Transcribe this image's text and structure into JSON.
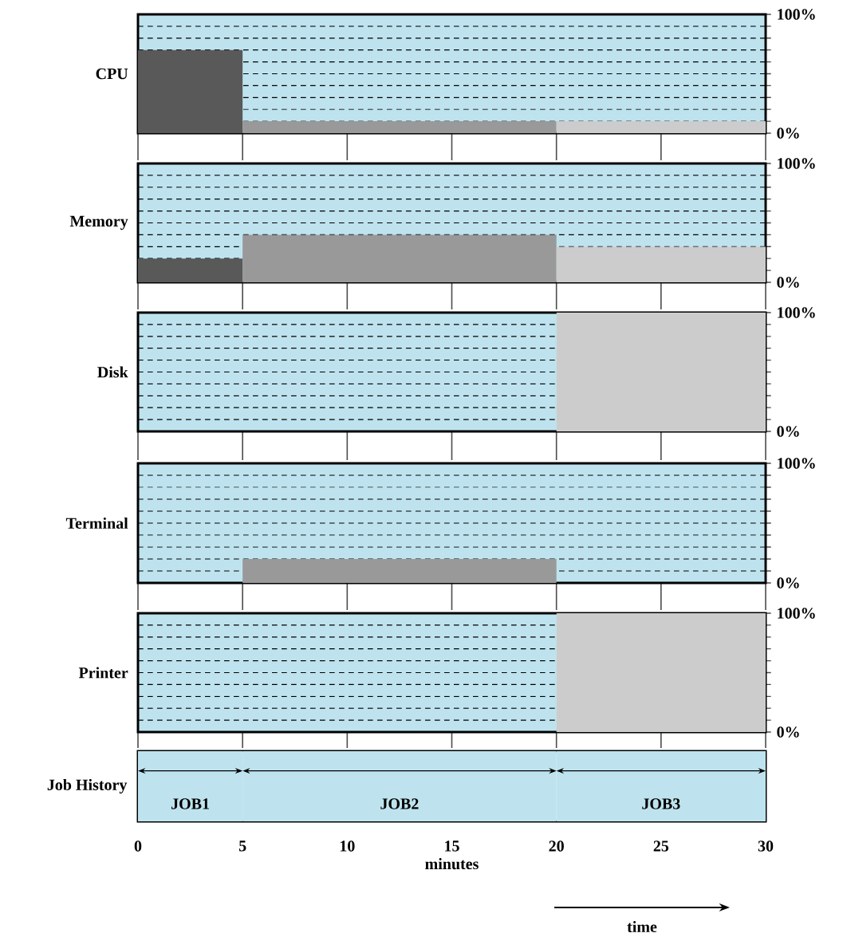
{
  "chart_data": [
    {
      "type": "histogram",
      "ylabel": "CPU",
      "bins": [
        0,
        5,
        20,
        30
      ],
      "values": [
        70,
        10,
        10
      ],
      "colors": [
        "#595959",
        "#999999",
        "#cccccc"
      ],
      "xlim": [
        0,
        30
      ],
      "xticks": [
        0,
        5,
        10,
        15,
        20,
        25,
        30
      ],
      "ylim": [
        0,
        100
      ],
      "yticks": [
        {
          "value": 0,
          "label": "0%"
        },
        {
          "value": 10,
          "label": null
        },
        {
          "value": 20,
          "label": null
        },
        {
          "value": 30,
          "label": null
        },
        {
          "value": 40,
          "label": null
        },
        {
          "value": 50,
          "label": null
        },
        {
          "value": 60,
          "label": null
        },
        {
          "value": 70,
          "label": null
        },
        {
          "value": 80,
          "label": null
        },
        {
          "value": 90,
          "label": null
        },
        {
          "value": 100,
          "label": "100%"
        }
      ],
      "grid": "y",
      "tick_labels": "y"
    },
    {
      "type": "histogram",
      "ylabel": "Memory",
      "bins": [
        0,
        5,
        20,
        30
      ],
      "values": [
        20,
        40,
        30
      ],
      "colors": [
        "#595959",
        "#999999",
        "#cccccc"
      ],
      "xlim": [
        0,
        30
      ],
      "xticks": [
        0,
        5,
        10,
        15,
        20,
        25,
        30
      ],
      "ylim": [
        0,
        100
      ],
      "yticks": [
        {
          "value": 0,
          "label": "0%"
        },
        {
          "value": 10,
          "label": null
        },
        {
          "value": 20,
          "label": null
        },
        {
          "value": 30,
          "label": null
        },
        {
          "value": 40,
          "label": null
        },
        {
          "value": 50,
          "label": null
        },
        {
          "value": 60,
          "label": null
        },
        {
          "value": 70,
          "label": null
        },
        {
          "value": 80,
          "label": null
        },
        {
          "value": 90,
          "label": null
        },
        {
          "value": 100,
          "label": "100%"
        }
      ],
      "grid": "y",
      "tick_labels": "y"
    },
    {
      "type": "histogram",
      "ylabel": "Disk",
      "bins": [
        20,
        30
      ],
      "values": [
        100
      ],
      "colors": [
        "#cccccc"
      ],
      "xlim": [
        0,
        30
      ],
      "xticks": [
        0,
        5,
        10,
        15,
        20,
        25,
        30
      ],
      "ylim": [
        0,
        100
      ],
      "yticks": [
        {
          "value": 0,
          "label": "0%"
        },
        {
          "value": 10,
          "label": null
        },
        {
          "value": 20,
          "label": null
        },
        {
          "value": 30,
          "label": null
        },
        {
          "value": 40,
          "label": null
        },
        {
          "value": 50,
          "label": null
        },
        {
          "value": 60,
          "label": null
        },
        {
          "value": 70,
          "label": null
        },
        {
          "value": 80,
          "label": null
        },
        {
          "value": 90,
          "label": null
        },
        {
          "value": 100,
          "label": "100%"
        }
      ],
      "grid": "y",
      "tick_labels": "y"
    },
    {
      "type": "histogram",
      "ylabel": "Terminal",
      "bins": [
        5,
        20
      ],
      "values": [
        20
      ],
      "colors": [
        "#999999"
      ],
      "xlim": [
        0,
        30
      ],
      "xticks": [
        0,
        5,
        10,
        15,
        20,
        25,
        30
      ],
      "ylim": [
        0,
        100
      ],
      "yticks": [
        {
          "value": 0,
          "label": "0%"
        },
        {
          "value": 10,
          "label": null
        },
        {
          "value": 20,
          "label": null
        },
        {
          "value": 30,
          "label": null
        },
        {
          "value": 40,
          "label": null
        },
        {
          "value": 50,
          "label": null
        },
        {
          "value": 60,
          "label": null
        },
        {
          "value": 70,
          "label": null
        },
        {
          "value": 80,
          "label": null
        },
        {
          "value": 90,
          "label": null
        },
        {
          "value": 100,
          "label": "100%"
        }
      ],
      "grid": "y",
      "tick_labels": "y"
    },
    {
      "type": "histogram",
      "ylabel": "Printer",
      "bins": [
        20,
        30
      ],
      "values": [
        100
      ],
      "colors": [
        "#cccccc"
      ],
      "xlim": [
        0,
        30
      ],
      "xticks": [
        0,
        5,
        10,
        15,
        20,
        25,
        30
      ],
      "ylim": [
        0,
        100
      ],
      "yticks": [
        {
          "value": 0,
          "label": "0%"
        },
        {
          "value": 10,
          "label": null
        },
        {
          "value": 20,
          "label": null
        },
        {
          "value": 30,
          "label": null
        },
        {
          "value": 40,
          "label": null
        },
        {
          "value": 50,
          "label": null
        },
        {
          "value": 60,
          "label": null
        },
        {
          "value": 70,
          "label": null
        },
        {
          "value": 80,
          "label": null
        },
        {
          "value": 90,
          "label": null
        },
        {
          "value": 100,
          "label": "100%"
        }
      ],
      "grid": "y",
      "tick_labels": "y"
    },
    {
      "type": "bar",
      "orientation": "horizontal",
      "stacked": true,
      "categories": [
        "Job History"
      ],
      "xlabel": "minutes",
      "xlim": [
        0,
        30
      ],
      "xticks": [
        0,
        5,
        10,
        15,
        20,
        25,
        30
      ],
      "series": [
        {
          "name": "JOB1",
          "color": "#bee3ee",
          "values": [
            5
          ]
        },
        {
          "name": "JOB2",
          "color": "#bee3ee",
          "values": [
            15
          ]
        },
        {
          "name": "JOB3",
          "color": "#bee3ee",
          "values": [
            10
          ]
        }
      ],
      "annotations": [
        "time"
      ]
    }
  ]
}
